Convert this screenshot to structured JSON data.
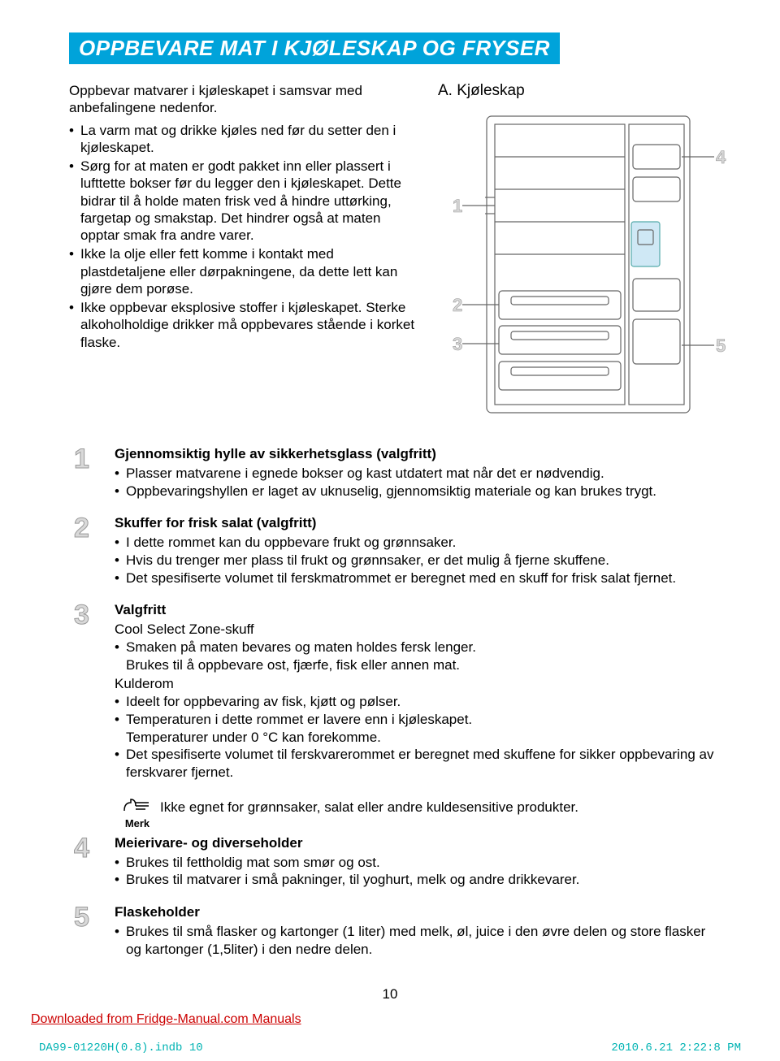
{
  "colors": {
    "banner_bg": "#00a3da",
    "banner_text": "#ffffff",
    "body_text": "#000000",
    "badge_fill": "#d9d9d9",
    "badge_stroke": "#999999",
    "link_color": "#cc0000",
    "footer_color": "#00b3b3",
    "diagram_stroke": "#666666"
  },
  "title": "OPPBEVARE MAT I KJØLESKAP OG FRYSER",
  "intro_lead": "Oppbevar matvarer i kjøleskapet i samsvar med anbefalingene nedenfor.",
  "intro_bullets": [
    "La varm mat og drikke kjøles ned før du setter den i kjøleskapet.",
    "Sørg for at maten er godt pakket inn eller plassert i lufttette bokser før du legger den i kjøleskapet. Dette bidrar til å holde maten frisk ved å hindre uttørking, fargetap og smakstap. Det hindrer også at maten opptar smak fra andre varer.",
    "Ikke la olje eller fett komme i kontakt med plastdetaljene eller dørpakningene, da dette lett kan gjøre dem porøse.",
    "Ikke oppbevar eksplosive stoffer i kjøleskapet. Sterke alkoholholdige drikker må oppbevares stående i korket flaske."
  ],
  "diagram": {
    "label": "A. Kjøleskap",
    "callouts_left": [
      "1",
      "2",
      "3"
    ],
    "callouts_right": [
      "4",
      "5"
    ]
  },
  "items": [
    {
      "num": "1",
      "title": "Gjennomsiktig hylle av sikkerhetsglass (valgfritt)",
      "lines": [
        {
          "type": "bullet",
          "text": "Plasser matvarene i egnede bokser og kast utdatert mat når det er nødvendig."
        },
        {
          "type": "bullet",
          "text": "Oppbevaringshyllen er laget av uknuselig, gjennomsiktig materiale og kan brukes trygt."
        }
      ]
    },
    {
      "num": "2",
      "title": "Skuffer for frisk salat (valgfritt)",
      "lines": [
        {
          "type": "bullet",
          "text": "I dette rommet kan du oppbevare frukt og grønnsaker."
        },
        {
          "type": "bullet",
          "text": "Hvis du trenger mer plass til frukt og grønnsaker, er det mulig å fjerne skuffene."
        },
        {
          "type": "bullet",
          "text": "Det spesifiserte volumet til ferskmatrommet er beregnet med en skuff for frisk salat fjernet."
        }
      ]
    },
    {
      "num": "3",
      "title": "Valgfritt",
      "lines": [
        {
          "type": "heading",
          "text": "Cool Select Zone-skuff"
        },
        {
          "type": "bullet",
          "text": "Smaken på maten bevares og maten holdes fersk lenger."
        },
        {
          "type": "plain",
          "text": "Brukes til å oppbevare ost, fjærfe, fisk eller annen mat."
        },
        {
          "type": "heading",
          "text": "Kulderom"
        },
        {
          "type": "bullet",
          "text": "Ideelt for oppbevaring av fisk, kjøtt og pølser."
        },
        {
          "type": "bullet",
          "text": "Temperaturen i dette rommet er lavere enn i kjøleskapet."
        },
        {
          "type": "plain",
          "text": "Temperaturer under 0 °C kan forekomme."
        },
        {
          "type": "bullet",
          "text": "Det spesifiserte volumet til ferskvarerommet er beregnet med skuffene for sikker oppbevaring av ferskvarer fjernet."
        }
      ]
    },
    {
      "num": "4",
      "title": "Meierivare- og diverseholder",
      "lines": [
        {
          "type": "bullet",
          "text": "Brukes til fettholdig mat som smør og ost."
        },
        {
          "type": "bullet",
          "text": "Brukes til matvarer i små pakninger, til yoghurt, melk og andre drikkevarer."
        }
      ]
    },
    {
      "num": "5",
      "title": "Flaskeholder",
      "lines": [
        {
          "type": "bullet",
          "text": "Brukes til små flasker og kartonger (1 liter) med melk, øl, juice i den øvre delen og store flasker og kartonger (1,5liter) i den nedre delen."
        }
      ]
    }
  ],
  "note": {
    "label": "Merk",
    "text": "Ikke egnet for grønnsaker, salat eller andre kuldesensitive produkter."
  },
  "page_number": "10",
  "download_text": "Downloaded from Fridge-Manual.com Manuals",
  "footer": {
    "left": "DA99-01220H(0.8).indb   10",
    "right": "2010.6.21   2:22:8 PM"
  }
}
